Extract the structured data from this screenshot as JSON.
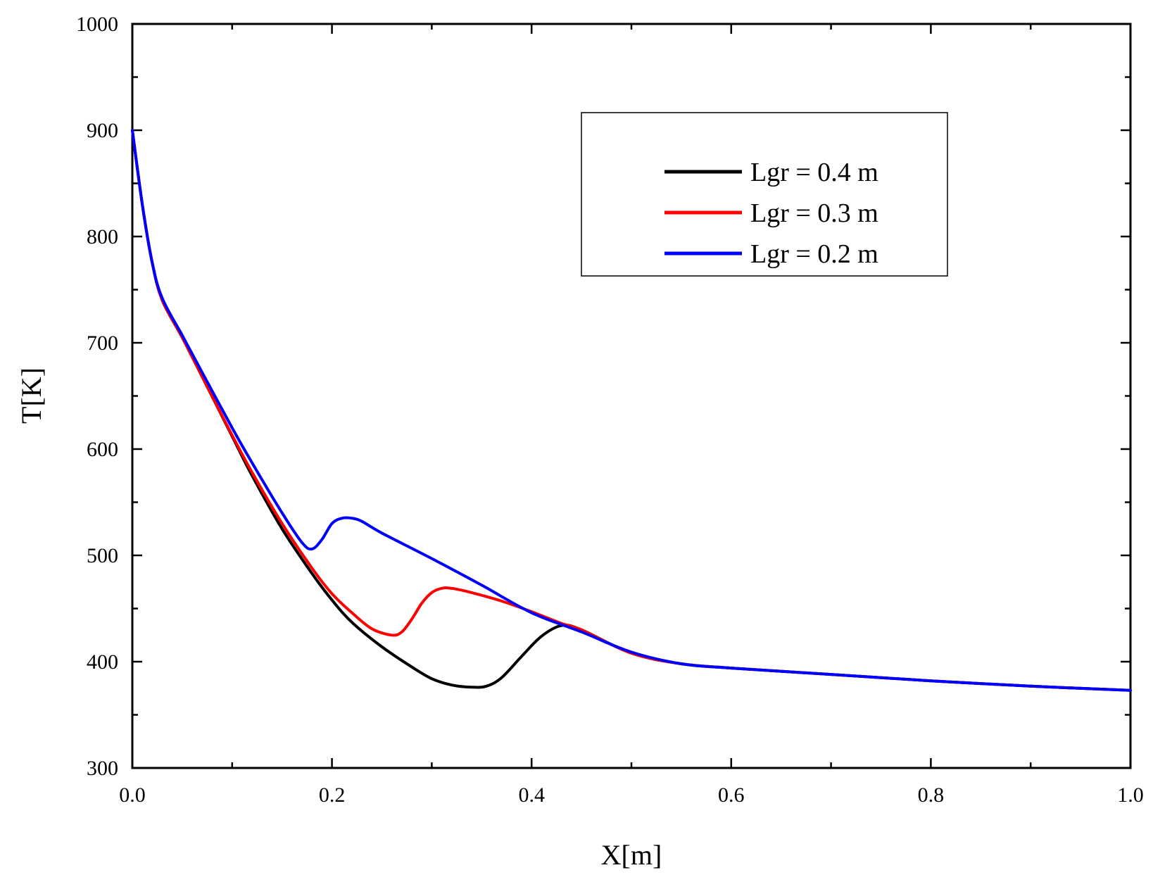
{
  "chart_data": {
    "type": "line",
    "title": "",
    "xlabel": "X[m]",
    "ylabel": "T[K]",
    "xlim": [
      0.0,
      1.0
    ],
    "ylim": [
      300,
      1000
    ],
    "x_ticks": [
      0.0,
      0.2,
      0.4,
      0.6,
      0.8,
      1.0
    ],
    "x_tick_labels": [
      "0.0",
      "0.2",
      "0.4",
      "0.6",
      "0.8",
      "1.0"
    ],
    "y_ticks": [
      300,
      400,
      500,
      600,
      700,
      800,
      900,
      1000
    ],
    "y_tick_labels": [
      "300",
      "400",
      "500",
      "600",
      "700",
      "800",
      "900",
      "1000"
    ],
    "grid": false,
    "legend_position": "top-right",
    "series": [
      {
        "name": "Lgr = 0.4 m",
        "color": "#000000",
        "x": [
          0.0,
          0.01,
          0.02,
          0.03,
          0.05,
          0.07,
          0.1,
          0.12,
          0.15,
          0.18,
          0.2,
          0.22,
          0.25,
          0.28,
          0.3,
          0.32,
          0.34,
          0.355,
          0.37,
          0.39,
          0.41,
          0.43,
          0.45,
          0.5,
          0.55,
          0.6,
          0.7,
          0.8,
          0.9,
          1.0
        ],
        "y": [
          900,
          830,
          775,
          740,
          705,
          668,
          612,
          575,
          525,
          483,
          458,
          437,
          414,
          395,
          384,
          378,
          376,
          377,
          385,
          405,
          424,
          434,
          430,
          408,
          398,
          394,
          388,
          382,
          377,
          373
        ]
      },
      {
        "name": "Lgr = 0.3 m",
        "color": "#ff0000",
        "x": [
          0.0,
          0.01,
          0.02,
          0.03,
          0.05,
          0.07,
          0.1,
          0.12,
          0.15,
          0.18,
          0.2,
          0.22,
          0.24,
          0.26,
          0.27,
          0.28,
          0.29,
          0.3,
          0.31,
          0.32,
          0.34,
          0.37,
          0.4,
          0.43,
          0.45,
          0.5,
          0.55,
          0.6,
          0.7,
          0.8,
          0.9,
          1.0
        ],
        "y": [
          900,
          830,
          775,
          740,
          705,
          668,
          613,
          578,
          530,
          488,
          464,
          446,
          431,
          425,
          428,
          440,
          455,
          465,
          469,
          469,
          465,
          457,
          447,
          436,
          430,
          408,
          398,
          394,
          388,
          382,
          377,
          373
        ]
      },
      {
        "name": "Lgr = 0.2 m",
        "color": "#0000ff",
        "x": [
          0.0,
          0.01,
          0.02,
          0.03,
          0.05,
          0.07,
          0.1,
          0.12,
          0.15,
          0.17,
          0.18,
          0.19,
          0.2,
          0.21,
          0.22,
          0.23,
          0.25,
          0.3,
          0.35,
          0.4,
          0.45,
          0.5,
          0.55,
          0.6,
          0.7,
          0.8,
          0.9,
          1.0
        ],
        "y": [
          900,
          830,
          775,
          742,
          707,
          672,
          620,
          587,
          540,
          512,
          506,
          515,
          530,
          535,
          535,
          532,
          521,
          497,
          472,
          446,
          428,
          409,
          398,
          394,
          388,
          382,
          377,
          373
        ]
      }
    ]
  }
}
